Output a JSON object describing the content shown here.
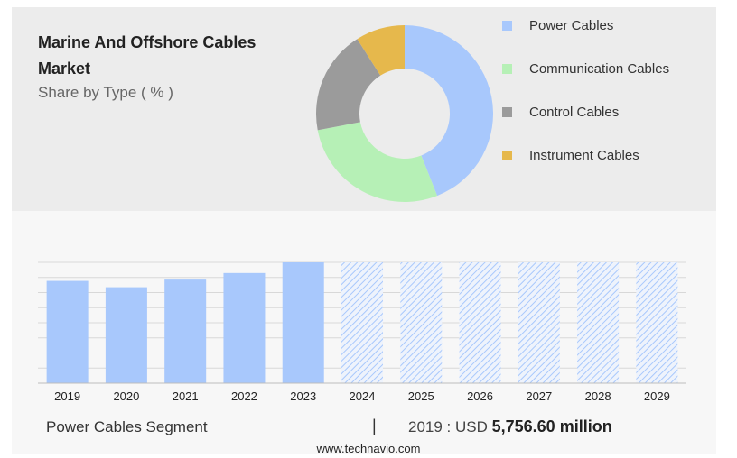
{
  "header": {
    "title": "Marine And Offshore Cables Market",
    "subtitle": "Share by Type ( % )"
  },
  "chart_data": [
    {
      "type": "pie",
      "style": "donut",
      "categories": [
        "Power Cables",
        "Communication Cables",
        "Control Cables",
        "Instrument Cables"
      ],
      "values": [
        44,
        28,
        19,
        9
      ],
      "colors": [
        "#a8c8fc",
        "#b6f0b6",
        "#9b9b9b",
        "#e6b84c"
      ],
      "legend_position": "right"
    },
    {
      "type": "bar",
      "categories": [
        "2019",
        "2020",
        "2021",
        "2022",
        "2023",
        "2024",
        "2025",
        "2026",
        "2027",
        "2028",
        "2029"
      ],
      "series": [
        {
          "values": [
            5756.6,
            5400,
            5830,
            6200,
            6800,
            null,
            null,
            null,
            null,
            null,
            null
          ]
        }
      ],
      "forecast_categories": [
        "2024",
        "2025",
        "2026",
        "2027",
        "2028",
        "2029"
      ],
      "ylim": [
        0,
        6800
      ],
      "grid": true,
      "colors": {
        "bar": "#a8c8fc",
        "forecast_hatch": "#a8c8fc"
      }
    }
  ],
  "footer": {
    "segment_label": "Power Cables Segment",
    "separator": "|",
    "value_prefix": "2019 : USD",
    "value_bold": "5,756.60 million",
    "website": "www.technavio.com"
  }
}
